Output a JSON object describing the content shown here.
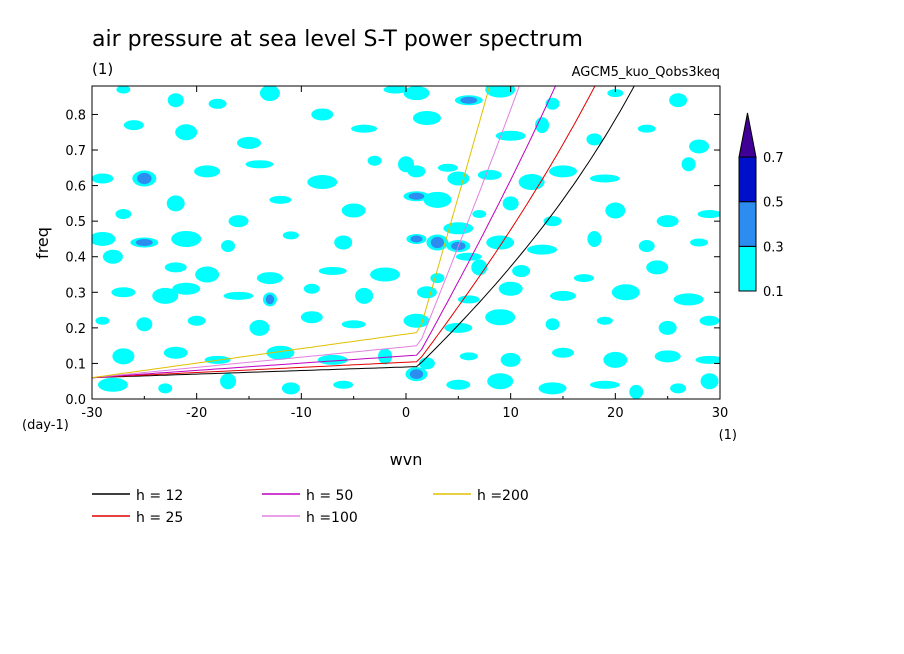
{
  "chart_data": {
    "type": "heatmap",
    "title": "air pressure at sea level S-T power spectrum",
    "subtitle_left": "(1)",
    "subtitle_right": "AGCM5_kuo_Qobs3keq",
    "xlabel": "wvn",
    "ylabel": "freq",
    "x_unit": "(1)",
    "y_unit": "(day-1)",
    "xlim": [
      -30,
      30
    ],
    "ylim": [
      0,
      0.88
    ],
    "x_ticks": [
      -30,
      -20,
      -10,
      0,
      10,
      20,
      30
    ],
    "x_tick_labels": [
      "-30",
      "-20",
      "-10",
      "0",
      "10",
      "20",
      "30"
    ],
    "y_ticks": [
      0,
      0.1,
      0.2,
      0.3,
      0.4,
      0.5,
      0.6,
      0.7,
      0.8
    ],
    "y_tick_labels": [
      "0.0",
      "0.1",
      "0.2",
      "0.3",
      "0.4",
      "0.5",
      "0.6",
      "0.7",
      "0.8"
    ],
    "colorbar": {
      "levels": [
        "0.1",
        "0.3",
        "0.5",
        "0.7"
      ],
      "colors": [
        "#00ffff",
        "#2c8cf0",
        "#0010c8",
        "#400098"
      ]
    },
    "contour_fill": {
      "levels": [
        0.1,
        0.3,
        0.5,
        0.7
      ],
      "blobs": [
        [
          -27,
          0.87,
          0.14
        ],
        [
          -22,
          0.84,
          0.16
        ],
        [
          -18,
          0.83,
          0.12
        ],
        [
          -13,
          0.86,
          0.14
        ],
        [
          -8,
          0.8,
          0.12
        ],
        [
          -1,
          0.87,
          0.18
        ],
        [
          1,
          0.86,
          0.22
        ],
        [
          6,
          0.84,
          0.42
        ],
        [
          9,
          0.87,
          0.16
        ],
        [
          14,
          0.83,
          0.13
        ],
        [
          20,
          0.86,
          0.12
        ],
        [
          26,
          0.84,
          0.15
        ],
        [
          -26,
          0.77,
          0.14
        ],
        [
          -21,
          0.75,
          0.16
        ],
        [
          -15,
          0.72,
          0.12
        ],
        [
          -4,
          0.76,
          0.13
        ],
        [
          2,
          0.79,
          0.14
        ],
        [
          10,
          0.74,
          0.15
        ],
        [
          13,
          0.77,
          0.22
        ],
        [
          18,
          0.73,
          0.12
        ],
        [
          23,
          0.76,
          0.13
        ],
        [
          28,
          0.71,
          0.12
        ],
        [
          -29,
          0.62,
          0.14
        ],
        [
          -25,
          0.62,
          0.36
        ],
        [
          -19,
          0.64,
          0.13
        ],
        [
          -14,
          0.66,
          0.12
        ],
        [
          -8,
          0.61,
          0.12
        ],
        [
          -3,
          0.67,
          0.13
        ],
        [
          0,
          0.66,
          0.18
        ],
        [
          1,
          0.64,
          0.14
        ],
        [
          4,
          0.65,
          0.16
        ],
        [
          5,
          0.62,
          0.26
        ],
        [
          8,
          0.63,
          0.14
        ],
        [
          12,
          0.61,
          0.14
        ],
        [
          15,
          0.64,
          0.14
        ],
        [
          19,
          0.62,
          0.13
        ],
        [
          27,
          0.66,
          0.13
        ],
        [
          -27,
          0.52,
          0.16
        ],
        [
          -22,
          0.55,
          0.13
        ],
        [
          -16,
          0.5,
          0.12
        ],
        [
          -12,
          0.56,
          0.13
        ],
        [
          -5,
          0.53,
          0.13
        ],
        [
          1,
          0.57,
          0.42
        ],
        [
          3,
          0.56,
          0.28
        ],
        [
          5,
          0.48,
          0.24
        ],
        [
          7,
          0.52,
          0.14
        ],
        [
          10,
          0.55,
          0.14
        ],
        [
          14,
          0.5,
          0.13
        ],
        [
          20,
          0.53,
          0.13
        ],
        [
          25,
          0.5,
          0.12
        ],
        [
          29,
          0.52,
          0.14
        ],
        [
          -29,
          0.45,
          0.14
        ],
        [
          -25,
          0.44,
          0.34
        ],
        [
          -21,
          0.45,
          0.16
        ],
        [
          -17,
          0.43,
          0.13
        ],
        [
          -11,
          0.46,
          0.12
        ],
        [
          -6,
          0.44,
          0.12
        ],
        [
          1,
          0.45,
          0.38
        ],
        [
          3,
          0.44,
          0.44
        ],
        [
          5,
          0.43,
          0.36
        ],
        [
          6,
          0.4,
          0.16
        ],
        [
          9,
          0.44,
          0.14
        ],
        [
          13,
          0.42,
          0.13
        ],
        [
          18,
          0.45,
          0.13
        ],
        [
          23,
          0.43,
          0.12
        ],
        [
          28,
          0.44,
          0.12
        ],
        [
          -28,
          0.4,
          0.13
        ],
        [
          -22,
          0.37,
          0.13
        ],
        [
          -19,
          0.35,
          0.14
        ],
        [
          -13,
          0.34,
          0.12
        ],
        [
          -7,
          0.36,
          0.12
        ],
        [
          -2,
          0.35,
          0.12
        ],
        [
          3,
          0.34,
          0.13
        ],
        [
          7,
          0.37,
          0.14
        ],
        [
          11,
          0.36,
          0.14
        ],
        [
          17,
          0.34,
          0.12
        ],
        [
          24,
          0.37,
          0.13
        ],
        [
          -27,
          0.3,
          0.13
        ],
        [
          -23,
          0.29,
          0.24
        ],
        [
          -21,
          0.31,
          0.22
        ],
        [
          -16,
          0.29,
          0.16
        ],
        [
          -13,
          0.28,
          0.32
        ],
        [
          -9,
          0.31,
          0.13
        ],
        [
          -4,
          0.29,
          0.12
        ],
        [
          2,
          0.3,
          0.13
        ],
        [
          6,
          0.28,
          0.13
        ],
        [
          10,
          0.31,
          0.12
        ],
        [
          15,
          0.29,
          0.13
        ],
        [
          21,
          0.3,
          0.14
        ],
        [
          27,
          0.28,
          0.13
        ],
        [
          -29,
          0.22,
          0.13
        ],
        [
          -25,
          0.21,
          0.13
        ],
        [
          -20,
          0.22,
          0.14
        ],
        [
          -14,
          0.2,
          0.18
        ],
        [
          -9,
          0.23,
          0.12
        ],
        [
          -5,
          0.21,
          0.12
        ],
        [
          1,
          0.22,
          0.12
        ],
        [
          5,
          0.2,
          0.13
        ],
        [
          9,
          0.23,
          0.14
        ],
        [
          14,
          0.21,
          0.13
        ],
        [
          19,
          0.22,
          0.13
        ],
        [
          25,
          0.2,
          0.14
        ],
        [
          29,
          0.22,
          0.12
        ],
        [
          -27,
          0.12,
          0.13
        ],
        [
          -22,
          0.13,
          0.12
        ],
        [
          -18,
          0.11,
          0.13
        ],
        [
          -12,
          0.13,
          0.14
        ],
        [
          -7,
          0.11,
          0.12
        ],
        [
          -2,
          0.12,
          0.13
        ],
        [
          2,
          0.1,
          0.14
        ],
        [
          6,
          0.12,
          0.24
        ],
        [
          10,
          0.11,
          0.13
        ],
        [
          15,
          0.13,
          0.13
        ],
        [
          20,
          0.11,
          0.12
        ],
        [
          25,
          0.12,
          0.14
        ],
        [
          29,
          0.11,
          0.12
        ],
        [
          -28,
          0.04,
          0.13
        ],
        [
          -23,
          0.03,
          0.14
        ],
        [
          -17,
          0.05,
          0.12
        ],
        [
          -11,
          0.03,
          0.13
        ],
        [
          -6,
          0.04,
          0.12
        ],
        [
          1,
          0.07,
          0.46
        ],
        [
          5,
          0.04,
          0.16
        ],
        [
          9,
          0.05,
          0.13
        ],
        [
          14,
          0.03,
          0.13
        ],
        [
          19,
          0.04,
          0.14
        ],
        [
          22,
          0.02,
          0.16
        ],
        [
          26,
          0.03,
          0.14
        ],
        [
          29,
          0.05,
          0.13
        ]
      ]
    },
    "series": [
      {
        "name": "h = 12",
        "color": "#000000",
        "h": 12
      },
      {
        "name": "h = 25",
        "color": "#e00000",
        "h": 25
      },
      {
        "name": "h = 50",
        "color": "#c000c0",
        "h": 50
      },
      {
        "name": "h =100",
        "color": "#e080e0",
        "h": 100
      },
      {
        "name": "h =200",
        "color": "#e0c000",
        "h": 200
      }
    ]
  }
}
